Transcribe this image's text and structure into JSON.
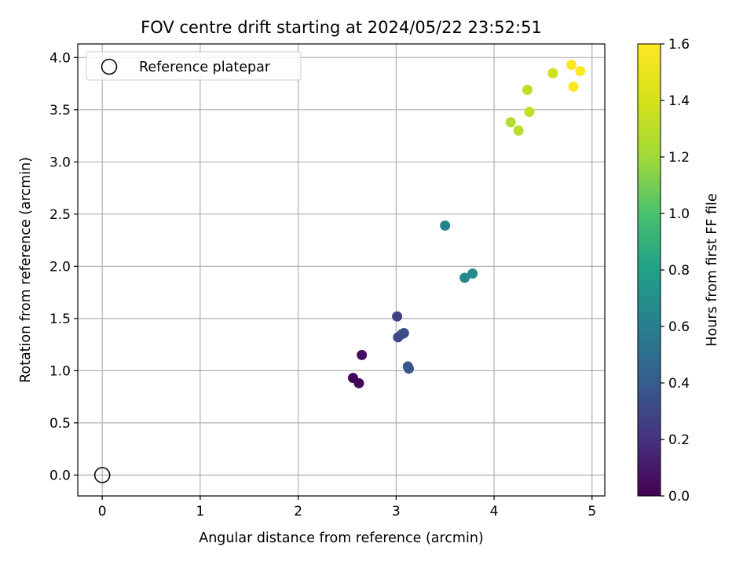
{
  "chart_data": {
    "type": "scatter",
    "title": "FOV centre drift starting at 2024/05/22 23:52:51",
    "xlabel": "Angular distance from reference (arcmin)",
    "ylabel": "Rotation from reference (arcmin)",
    "xlim": [
      -0.25,
      5.13
    ],
    "ylim": [
      -0.2,
      4.13
    ],
    "x_ticks": [
      0,
      1,
      2,
      3,
      4,
      5
    ],
    "x_tick_labels": [
      "0",
      "1",
      "2",
      "3",
      "4",
      "5"
    ],
    "y_ticks": [
      0.0,
      0.5,
      1.0,
      1.5,
      2.0,
      2.5,
      3.0,
      3.5,
      4.0
    ],
    "y_tick_labels": [
      "0.0",
      "0.5",
      "1.0",
      "1.5",
      "2.0",
      "2.5",
      "3.0",
      "3.5",
      "4.0"
    ],
    "grid": true,
    "legend": {
      "placement": "top-left",
      "label": "Reference platepar"
    },
    "reference_point": {
      "x": 0,
      "y": 0
    },
    "colorbar": {
      "label": "Hours from first FF file",
      "range": [
        0.0,
        1.6
      ],
      "colormap": "viridis",
      "ticks": [
        0.0,
        0.2,
        0.4,
        0.6,
        0.8,
        1.0,
        1.2,
        1.4,
        1.6
      ],
      "tick_labels": [
        "0.0",
        "0.2",
        "0.4",
        "0.6",
        "0.8",
        "1.0",
        "1.2",
        "1.4",
        "1.6"
      ]
    },
    "series": [
      {
        "points": [
          {
            "x": 2.56,
            "y": 0.93,
            "c": 0.02
          },
          {
            "x": 2.62,
            "y": 0.88,
            "c": 0.03
          },
          {
            "x": 2.65,
            "y": 1.15,
            "c": 0.05
          },
          {
            "x": 3.01,
            "y": 1.52,
            "c": 0.27
          },
          {
            "x": 3.02,
            "y": 1.32,
            "c": 0.3
          },
          {
            "x": 3.06,
            "y": 1.35,
            "c": 0.32
          },
          {
            "x": 3.08,
            "y": 1.36,
            "c": 0.33
          },
          {
            "x": 3.12,
            "y": 1.04,
            "c": 0.36
          },
          {
            "x": 3.13,
            "y": 1.02,
            "c": 0.37
          },
          {
            "x": 3.5,
            "y": 2.39,
            "c": 0.62
          },
          {
            "x": 3.7,
            "y": 1.89,
            "c": 0.66
          },
          {
            "x": 3.78,
            "y": 1.93,
            "c": 0.68
          },
          {
            "x": 4.17,
            "y": 3.38,
            "c": 1.28
          },
          {
            "x": 4.25,
            "y": 3.3,
            "c": 1.29
          },
          {
            "x": 4.34,
            "y": 3.69,
            "c": 1.31
          },
          {
            "x": 4.36,
            "y": 3.48,
            "c": 1.32
          },
          {
            "x": 4.6,
            "y": 3.85,
            "c": 1.38
          },
          {
            "x": 4.79,
            "y": 3.93,
            "c": 1.59
          },
          {
            "x": 4.81,
            "y": 3.72,
            "c": 1.6
          },
          {
            "x": 4.88,
            "y": 3.87,
            "c": 1.6
          }
        ]
      }
    ]
  }
}
